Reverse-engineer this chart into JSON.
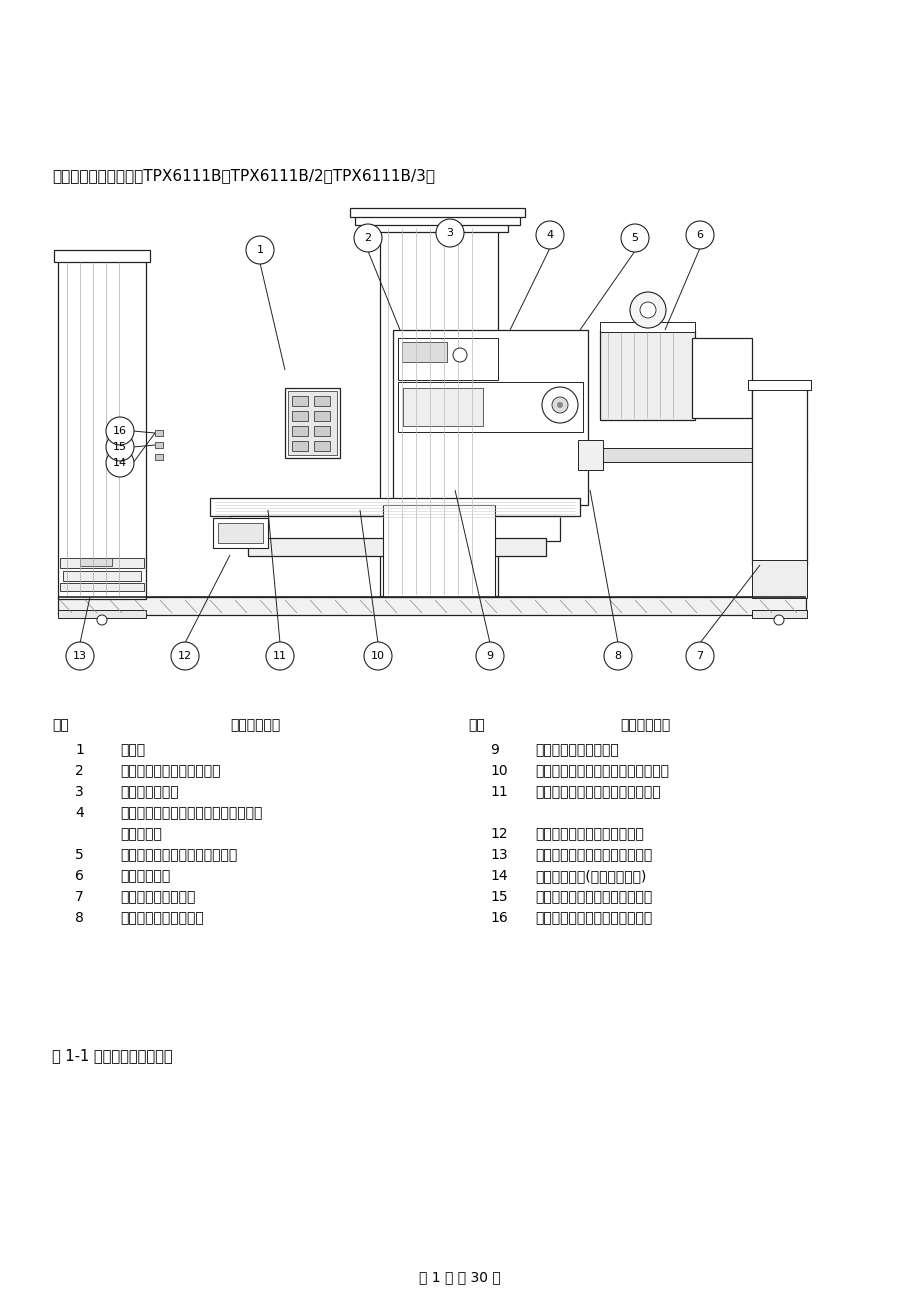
{
  "title_line": "一、机床的操纵说明（TPX6111B、TPX6111B/2、TPX6111B/3）",
  "figure_caption": "图 1-1 机床操作系统的布置",
  "page_footer": "第 1 页 共 30 页",
  "table_header_left": [
    "序号",
    "操纵机构名称"
  ],
  "table_header_right": [
    "床号",
    "操纵机构名称"
  ],
  "table_items_left": [
    [
      "1",
      "按鈕站"
    ],
    [
      "2",
      "平旋盘回转结合、脱开手柄"
    ],
    [
      "3",
      "正、反进给手柄"
    ],
    [
      "4",
      "机动、微动及主轴（含平旋盘滑块）大",
      "动分配手柄"
    ],
    [
      "5",
      "主轴或平旋盘滑块运动分配手柄"
    ],
    [
      "6",
      "主轴夹紧手柄"
    ],
    [
      "7",
      "主运动变速转阀手柄"
    ],
    [
      "8",
      "进给运动变速转阀手柄"
    ]
  ],
  "table_items_right": [
    [
      "9",
      "主轴筱手大动升降手柄"
    ],
    [
      "10",
      "工作台手大动纵、横向及回转手柄孔"
    ],
    [
      "11",
      "后立柱手动纵向及支架升降手柄孔"
    ],
    [
      "12",
      "后立柱夹紧点（前后各一点）"
    ],
    [
      "13",
      "后立柱纵向及支架升降分配手柄"
    ],
    [
      "14",
      "机床急停按鈕(带自动拉刀用)"
    ],
    [
      "15",
      "刀具松开按鈕（带自动拉刀用）"
    ],
    [
      "16",
      "刀具夹紧按鈕（带自动拉刀用）"
    ]
  ],
  "bg_color": "#ffffff",
  "text_color": "#000000",
  "font_size_title": 10.5,
  "font_size_table_header": 10,
  "font_size_table": 10,
  "font_size_footer": 10
}
